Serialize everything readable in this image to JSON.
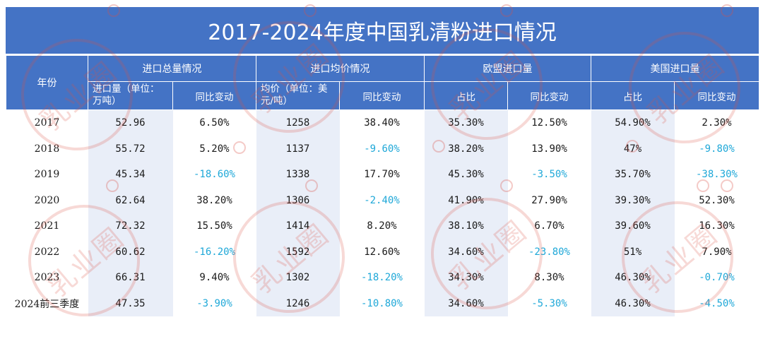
{
  "title": "2017-2024年度中国乳清粉进口情况",
  "header": {
    "year": "年份",
    "groups": [
      "进口总量情况",
      "进口均价情况",
      "欧盟进口量",
      "美国进口量"
    ],
    "sub": [
      "进口量（单位：万吨）",
      "同比变动",
      "均价（单位：美元/吨）",
      "同比变动",
      "占比",
      "同比变动",
      "占比",
      "同比变动"
    ]
  },
  "rows": [
    {
      "year": "2017",
      "vol": "52.96",
      "vol_yoy": "6.50%",
      "price": "1258",
      "price_yoy": "38.40%",
      "eu_share": "35.30%",
      "eu_yoy": "12.50%",
      "us_share": "54.90%",
      "us_yoy": "2.30%"
    },
    {
      "year": "2018",
      "vol": "55.72",
      "vol_yoy": "5.20%",
      "price": "1137",
      "price_yoy": "-9.60%",
      "eu_share": "38.20%",
      "eu_yoy": "13.90%",
      "us_share": "47%",
      "us_yoy": "-9.80%"
    },
    {
      "year": "2019",
      "vol": "45.34",
      "vol_yoy": "-18.60%",
      "price": "1338",
      "price_yoy": "17.70%",
      "eu_share": "45.30%",
      "eu_yoy": "-3.50%",
      "us_share": "35.70%",
      "us_yoy": "-38.30%"
    },
    {
      "year": "2020",
      "vol": "62.64",
      "vol_yoy": "38.20%",
      "price": "1306",
      "price_yoy": "-2.40%",
      "eu_share": "41.90%",
      "eu_yoy": "27.90%",
      "us_share": "39.30%",
      "us_yoy": "52.30%"
    },
    {
      "year": "2021",
      "vol": "72.32",
      "vol_yoy": "15.50%",
      "price": "1414",
      "price_yoy": "8.20%",
      "eu_share": "38.10%",
      "eu_yoy": "6.70%",
      "us_share": "39.60%",
      "us_yoy": "16.30%"
    },
    {
      "year": "2022",
      "vol": "60.62",
      "vol_yoy": "-16.20%",
      "price": "1592",
      "price_yoy": "12.60%",
      "eu_share": "34.60%",
      "eu_yoy": "-23.80%",
      "us_share": "51%",
      "us_yoy": "7.90%"
    },
    {
      "year": "2023",
      "vol": "66.31",
      "vol_yoy": "9.40%",
      "price": "1302",
      "price_yoy": "-18.20%",
      "eu_share": "34.30%",
      "eu_yoy": "8.30%",
      "us_share": "46.30%",
      "us_yoy": "-0.70%"
    },
    {
      "year": "2024前三季度",
      "vol": "47.35",
      "vol_yoy": "-3.90%",
      "price": "1246",
      "price_yoy": "-10.80%",
      "eu_share": "34.60%",
      "eu_yoy": "-5.30%",
      "us_share": "46.30%",
      "us_yoy": "-4.50%"
    }
  ],
  "watermark": "乳业圈",
  "colors": {
    "header_bg": "#4473c5",
    "negative": "#1fa8d8",
    "band": "#e9eef8"
  }
}
